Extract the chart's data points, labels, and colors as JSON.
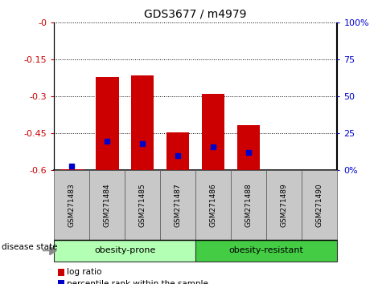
{
  "title": "GDS3677 / m4979",
  "samples": [
    "GSM271483",
    "GSM271484",
    "GSM271485",
    "GSM271487",
    "GSM271486",
    "GSM271488",
    "GSM271489",
    "GSM271490"
  ],
  "log_ratios": [
    -0.595,
    -0.22,
    -0.215,
    -0.445,
    -0.29,
    -0.415,
    -0.6,
    -0.6
  ],
  "percentile_ranks": [
    3,
    20,
    18,
    10,
    16,
    12,
    0,
    0
  ],
  "bar_color": "#cc0000",
  "percentile_color": "#0000cc",
  "ylim_left": [
    -0.6,
    0.0
  ],
  "ylim_right": [
    0,
    100
  ],
  "yticks_left": [
    0.0,
    -0.15,
    -0.3,
    -0.45,
    -0.6
  ],
  "ytick_labels_left": [
    "-0",
    "-0.15",
    "-0.3",
    "-0.45",
    "-0.6"
  ],
  "yticks_right": [
    0,
    25,
    50,
    75,
    100
  ],
  "ytick_labels_right": [
    "0%",
    "25",
    "50",
    "75",
    "100%"
  ],
  "group1_label": "obesity-prone",
  "group2_label": "obesity-resistant",
  "group1_color": "#b3ffb3",
  "group2_color": "#44cc44",
  "disease_state_label": "disease state",
  "legend_log_ratio": "log ratio",
  "legend_percentile": "percentile rank within the sample",
  "sample_box_color": "#c8c8c8",
  "bar_bottom": -0.6
}
